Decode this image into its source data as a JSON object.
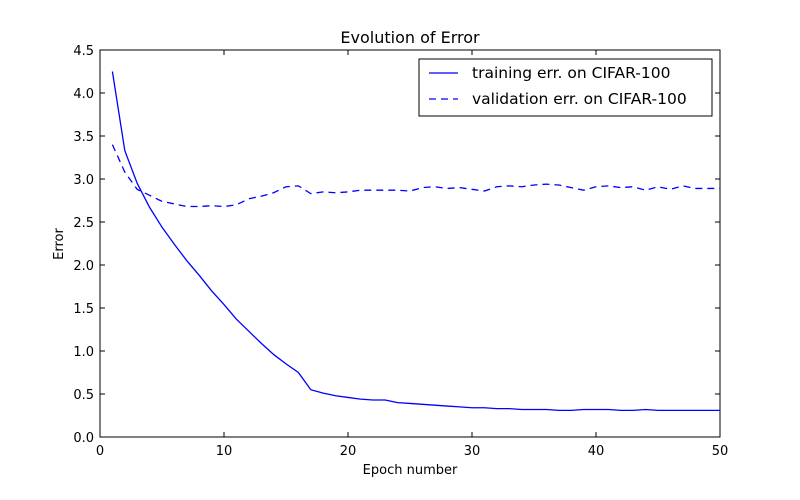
{
  "chart_data": {
    "type": "line",
    "title": "Evolution of Error",
    "xlabel": "Epoch number",
    "ylabel": "Error",
    "xlim": [
      0,
      50
    ],
    "ylim": [
      0,
      4.5
    ],
    "xticks": [
      0,
      10,
      20,
      30,
      40,
      50
    ],
    "yticks": [
      0.0,
      0.5,
      1.0,
      1.5,
      2.0,
      2.5,
      3.0,
      3.5,
      4.0,
      4.5
    ],
    "grid": false,
    "legend_position": "top-right",
    "colors": {
      "series": "#0000ff"
    },
    "x": [
      1,
      2,
      3,
      4,
      5,
      6,
      7,
      8,
      9,
      10,
      11,
      12,
      13,
      14,
      15,
      16,
      17,
      18,
      19,
      20,
      21,
      22,
      23,
      24,
      25,
      26,
      27,
      28,
      29,
      30,
      31,
      32,
      33,
      34,
      35,
      36,
      37,
      38,
      39,
      40,
      41,
      42,
      43,
      44,
      45,
      46,
      47,
      48,
      49,
      50
    ],
    "series": [
      {
        "name": "training err. on CIFAR-100",
        "style": "solid",
        "values": [
          4.25,
          3.33,
          2.95,
          2.67,
          2.44,
          2.24,
          2.05,
          1.88,
          1.7,
          1.54,
          1.37,
          1.23,
          1.09,
          0.96,
          0.85,
          0.75,
          0.55,
          0.51,
          0.48,
          0.46,
          0.44,
          0.43,
          0.43,
          0.4,
          0.39,
          0.38,
          0.37,
          0.36,
          0.35,
          0.34,
          0.34,
          0.33,
          0.33,
          0.32,
          0.32,
          0.32,
          0.31,
          0.31,
          0.32,
          0.32,
          0.32,
          0.31,
          0.31,
          0.32,
          0.31,
          0.31,
          0.31,
          0.31,
          0.31,
          0.31
        ]
      },
      {
        "name": "validation err. on CIFAR-100",
        "style": "dashed",
        "values": [
          3.4,
          3.08,
          2.88,
          2.81,
          2.74,
          2.71,
          2.68,
          2.68,
          2.69,
          2.68,
          2.7,
          2.77,
          2.8,
          2.84,
          2.91,
          2.92,
          2.83,
          2.85,
          2.84,
          2.85,
          2.87,
          2.87,
          2.87,
          2.87,
          2.86,
          2.9,
          2.91,
          2.89,
          2.9,
          2.88,
          2.86,
          2.91,
          2.92,
          2.91,
          2.93,
          2.94,
          2.93,
          2.9,
          2.87,
          2.91,
          2.92,
          2.9,
          2.91,
          2.87,
          2.91,
          2.88,
          2.92,
          2.89,
          2.89,
          2.89
        ]
      }
    ]
  }
}
